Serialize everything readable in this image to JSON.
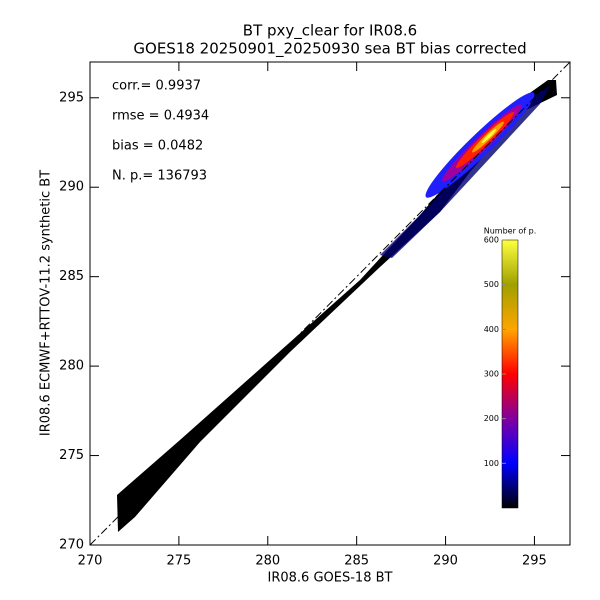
{
  "chart_data": {
    "type": "density",
    "title": "BT pxy_clear for IR08.6",
    "subtitle": "GOES18 20250901_20250930 sea BT bias corrected",
    "xlabel": "IR08.6 GOES-18 BT",
    "ylabel": "IR08.6 ECMWF+RTTOV-11.2 synthetic BT",
    "xlim": [
      270,
      297
    ],
    "ylim": [
      270,
      297
    ],
    "xticks": [
      270,
      275,
      280,
      285,
      290,
      295
    ],
    "yticks": [
      270,
      275,
      280,
      285,
      290,
      295
    ],
    "annotations": [
      "corr.= 0.9937",
      "rmse = 0.4934",
      "bias = 0.0482",
      "N. p.=  136793"
    ],
    "colorbar": {
      "label": "Number of p.",
      "lim": [
        0,
        600
      ],
      "ticks": [
        100,
        200,
        300,
        400,
        500,
        600
      ],
      "colormap": [
        "#000000",
        "#0000ff",
        "#8000a0",
        "#ff0000",
        "#ffa500",
        "#a0a000",
        "#ffff40"
      ]
    }
  }
}
